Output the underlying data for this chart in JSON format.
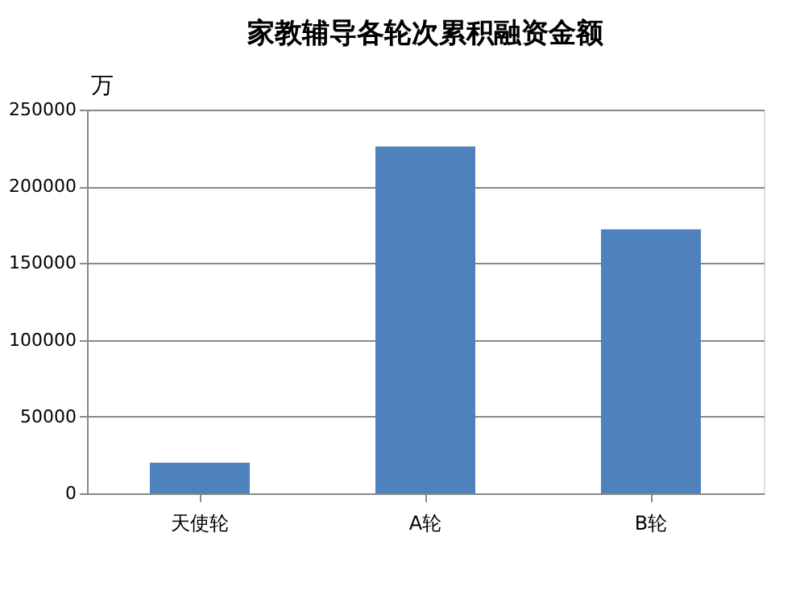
{
  "chart_data": {
    "type": "bar",
    "title": "家教辅导各轮次累积融资金额",
    "ylabel": "万",
    "categories": [
      "天使轮",
      "A轮",
      "B轮"
    ],
    "values": [
      20000,
      226000,
      172000
    ],
    "color": "#4f81bd",
    "ylim": [
      0,
      250000
    ],
    "yticks": [
      0,
      50000,
      100000,
      150000,
      200000,
      250000
    ],
    "grid": "y"
  }
}
